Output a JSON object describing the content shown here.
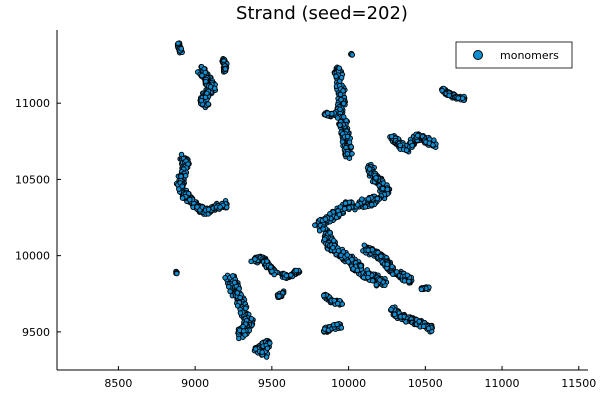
{
  "chart_data": {
    "type": "scatter",
    "title": "Strand (seed=202)",
    "xlabel": "",
    "ylabel": "",
    "xlim": [
      8100,
      11560
    ],
    "ylim": [
      9250,
      11480
    ],
    "xticks": [
      8500,
      9000,
      9500,
      10000,
      10500,
      11000,
      11500
    ],
    "xtick_labels": [
      "8500",
      "9000",
      "9500",
      "10000",
      "10500",
      "11000",
      "11500"
    ],
    "yticks": [
      9500,
      10000,
      10500,
      11000
    ],
    "ytick_labels": [
      "9500",
      "10000",
      "10500",
      "11000"
    ],
    "grid": false,
    "legend_position": "top-right",
    "series": [
      {
        "name": "monomers",
        "color": "#0e8fd4",
        "edge_color": "#000000",
        "clusters": [
          {
            "path": [
              [
                8890,
                11390
              ],
              [
                8900,
                11360
              ],
              [
                8910,
                11330
              ]
            ],
            "r": 10
          },
          {
            "path": [
              [
                9040,
                11220
              ],
              [
                9060,
                11180
              ],
              [
                9090,
                11140
              ],
              [
                9110,
                11100
              ],
              [
                9080,
                11060
              ],
              [
                9050,
                11020
              ],
              [
                9080,
                10990
              ]
            ],
            "r": 28
          },
          {
            "path": [
              [
                9180,
                11290
              ],
              [
                9200,
                11250
              ],
              [
                9190,
                11210
              ]
            ],
            "r": 14
          },
          {
            "path": [
              [
                10020,
                11320
              ]
            ],
            "r": 6
          },
          {
            "path": [
              [
                9920,
                11230
              ],
              [
                9940,
                11160
              ],
              [
                9950,
                11080
              ],
              [
                9960,
                11000
              ],
              [
                9930,
                10920
              ],
              [
                9970,
                10860
              ],
              [
                9980,
                10780
              ],
              [
                9990,
                10710
              ],
              [
                10000,
                10650
              ]
            ],
            "r": 30
          },
          {
            "path": [
              [
                9850,
                10930
              ],
              [
                9900,
                10920
              ]
            ],
            "r": 15
          },
          {
            "path": [
              [
                10610,
                11090
              ],
              [
                10650,
                11060
              ],
              [
                10700,
                11040
              ],
              [
                10760,
                11030
              ]
            ],
            "r": 14
          },
          {
            "path": [
              [
                10280,
                10780
              ],
              [
                10330,
                10730
              ],
              [
                10380,
                10700
              ],
              [
                10440,
                10780
              ],
              [
                10500,
                10760
              ],
              [
                10560,
                10730
              ]
            ],
            "r": 24
          },
          {
            "path": [
              [
                8920,
                10660
              ],
              [
                8940,
                10600
              ],
              [
                8920,
                10530
              ],
              [
                8900,
                10460
              ],
              [
                8930,
                10400
              ],
              [
                8980,
                10360
              ],
              [
                9020,
                10310
              ],
              [
                9080,
                10290
              ],
              [
                9140,
                10320
              ],
              [
                9200,
                10340
              ]
            ],
            "r": 26
          },
          {
            "path": [
              [
                10140,
                10580
              ],
              [
                10160,
                10530
              ],
              [
                10200,
                10480
              ],
              [
                10240,
                10430
              ],
              [
                10200,
                10380
              ],
              [
                10130,
                10350
              ],
              [
                10050,
                10330
              ],
              [
                9980,
                10320
              ],
              [
                9910,
                10270
              ],
              [
                9850,
                10230
              ],
              [
                9800,
                10190
              ]
            ],
            "r": 32
          },
          {
            "path": [
              [
                9840,
                10160
              ],
              [
                9870,
                10090
              ],
              [
                9910,
                10040
              ],
              [
                9970,
                10000
              ],
              [
                10020,
                9960
              ],
              [
                10060,
                9920
              ],
              [
                10120,
                9880
              ],
              [
                10180,
                9840
              ],
              [
                10230,
                9820
              ]
            ],
            "r": 34
          },
          {
            "path": [
              [
                10100,
                10050
              ],
              [
                10160,
                10020
              ],
              [
                10220,
                9980
              ],
              [
                10260,
                9940
              ],
              [
                10300,
                9890
              ],
              [
                10360,
                9860
              ],
              [
                10410,
                9840
              ]
            ],
            "r": 24
          },
          {
            "path": [
              [
                9220,
                9860
              ],
              [
                9250,
                9800
              ],
              [
                9270,
                9740
              ],
              [
                9300,
                9680
              ],
              [
                9320,
                9620
              ],
              [
                9350,
                9560
              ],
              [
                9330,
                9510
              ],
              [
                9280,
                9480
              ]
            ],
            "r": 36
          },
          {
            "path": [
              [
                9380,
                9970
              ],
              [
                9440,
                9980
              ],
              [
                9480,
                9930
              ],
              [
                9520,
                9880
              ]
            ],
            "r": 22
          },
          {
            "path": [
              [
                9570,
                9870
              ],
              [
                9620,
                9860
              ],
              [
                9670,
                9900
              ]
            ],
            "r": 15
          },
          {
            "path": [
              [
                9540,
                9730
              ],
              [
                9580,
                9760
              ]
            ],
            "r": 14
          },
          {
            "path": [
              [
                8880,
                9890
              ]
            ],
            "r": 8
          },
          {
            "path": [
              [
                9400,
                9380
              ],
              [
                9440,
                9400
              ],
              [
                9470,
                9440
              ],
              [
                9450,
                9340
              ]
            ],
            "r": 20
          },
          {
            "path": [
              [
                9840,
                9740
              ],
              [
                9890,
                9700
              ],
              [
                9950,
                9690
              ]
            ],
            "r": 15
          },
          {
            "path": [
              [
                9840,
                9510
              ],
              [
                9900,
                9530
              ],
              [
                9960,
                9540
              ]
            ],
            "r": 18
          },
          {
            "path": [
              [
                10280,
                9660
              ],
              [
                10320,
                9610
              ],
              [
                10370,
                9590
              ],
              [
                10420,
                9570
              ],
              [
                10480,
                9550
              ],
              [
                10540,
                9520
              ]
            ],
            "r": 22
          },
          {
            "path": [
              [
                10480,
                9780
              ],
              [
                10520,
                9790
              ]
            ],
            "r": 10
          }
        ]
      }
    ]
  }
}
